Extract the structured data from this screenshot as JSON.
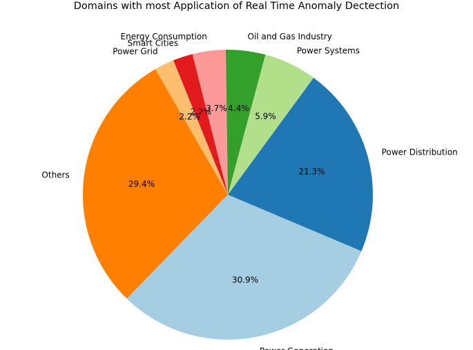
{
  "chart_data": {
    "type": "pie",
    "title": "Domains with most Application of Real Time Anomaly Dectection",
    "start_angle_deg": 120,
    "direction": "counterclockwise",
    "slices": [
      {
        "label": "Others",
        "value": 29.4,
        "pct_label": "29.4%",
        "color": "#ff7f00"
      },
      {
        "label": "Power Generation",
        "value": 30.9,
        "pct_label": "30.9%",
        "color": "#a6cee3"
      },
      {
        "label": "Power Distribution",
        "value": 21.3,
        "pct_label": "21.3%",
        "color": "#1f78b4"
      },
      {
        "label": "Power Systems",
        "value": 5.9,
        "pct_label": "5.9%",
        "color": "#b2df8a"
      },
      {
        "label": "Oil and Gas Industry",
        "value": 4.4,
        "pct_label": "4.4%",
        "color": "#33a02c"
      },
      {
        "label": "Energy Consumption",
        "value": 3.7,
        "pct_label": "3.7%",
        "color": "#fb9a99"
      },
      {
        "label": "Smart Cities",
        "value": 2.2,
        "pct_label": "2.2%",
        "color": "#e31a1c"
      },
      {
        "label": "Power Grid",
        "value": 2.2,
        "pct_label": "2.2%",
        "color": "#fdbf6f"
      }
    ]
  }
}
